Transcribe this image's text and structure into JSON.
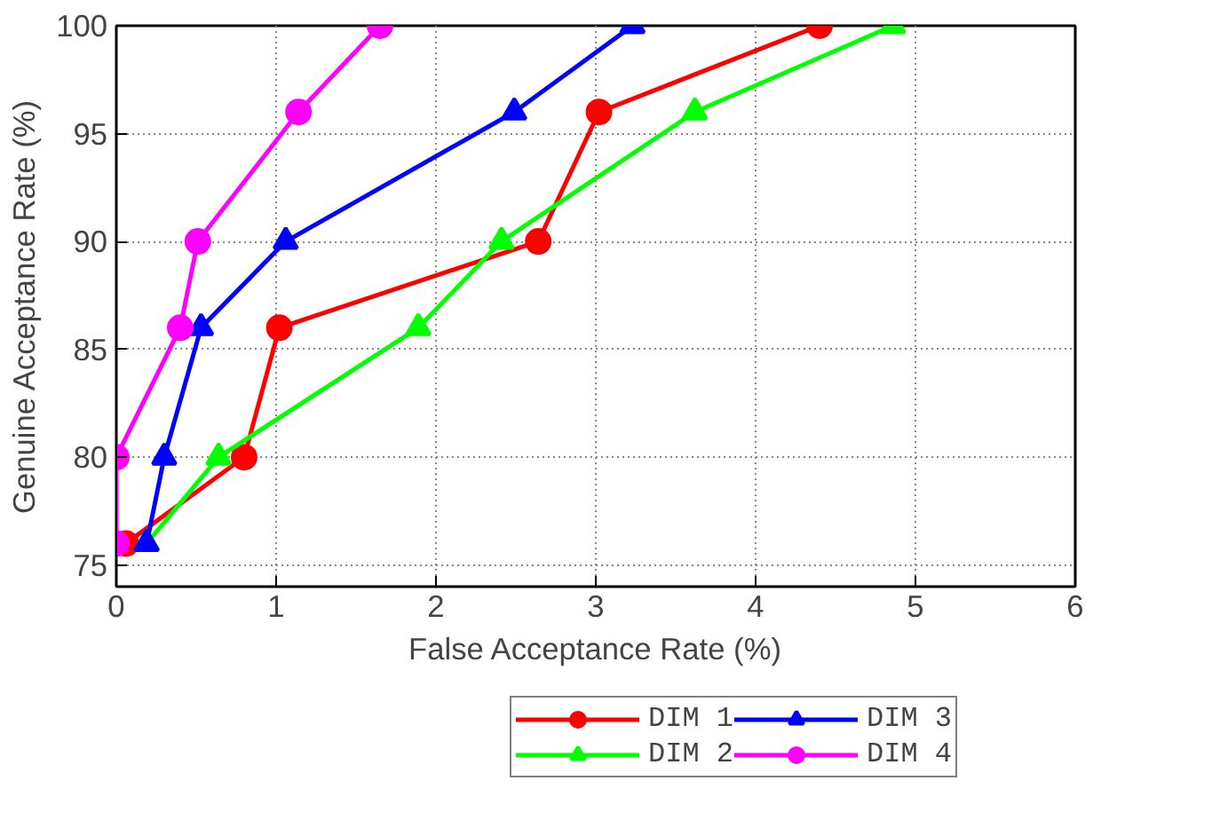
{
  "chart_data": {
    "type": "line",
    "xlabel": "False Acceptance Rate (%)",
    "ylabel": "Genuine Acceptance Rate (%)",
    "xlim": [
      0,
      6
    ],
    "ylim": [
      74,
      100
    ],
    "xticks": [
      0,
      1,
      2,
      3,
      4,
      5,
      6
    ],
    "yticks": [
      75,
      80,
      85,
      90,
      95,
      100
    ],
    "grid": true,
    "legend": "bottom",
    "line_style": "solid",
    "series": [
      {
        "name": "DIM 1",
        "color": "#ff0000",
        "marker": "circle",
        "x": [
          0.06,
          0.8,
          1.02,
          2.64,
          3.02,
          4.4
        ],
        "values": [
          76,
          80,
          86,
          90,
          96,
          100
        ]
      },
      {
        "name": "DIM 2",
        "color": "#00ff00",
        "marker": "triangle",
        "x": [
          0.19,
          0.64,
          1.89,
          2.41,
          3.62,
          4.86
        ],
        "values": [
          76,
          80,
          86,
          90,
          96,
          100
        ]
      },
      {
        "name": "DIM 3",
        "color": "#0000ff",
        "marker": "triangle",
        "x": [
          0.19,
          0.3,
          0.53,
          1.06,
          2.49,
          3.23
        ],
        "values": [
          76,
          80,
          86,
          90,
          96,
          100
        ]
      },
      {
        "name": "DIM 4",
        "color": "#ff00ff",
        "marker": "circle",
        "x": [
          0.0,
          0.0,
          0.4,
          0.51,
          1.14,
          1.65
        ],
        "values": [
          76,
          80,
          86,
          90,
          96,
          100
        ]
      }
    ]
  }
}
